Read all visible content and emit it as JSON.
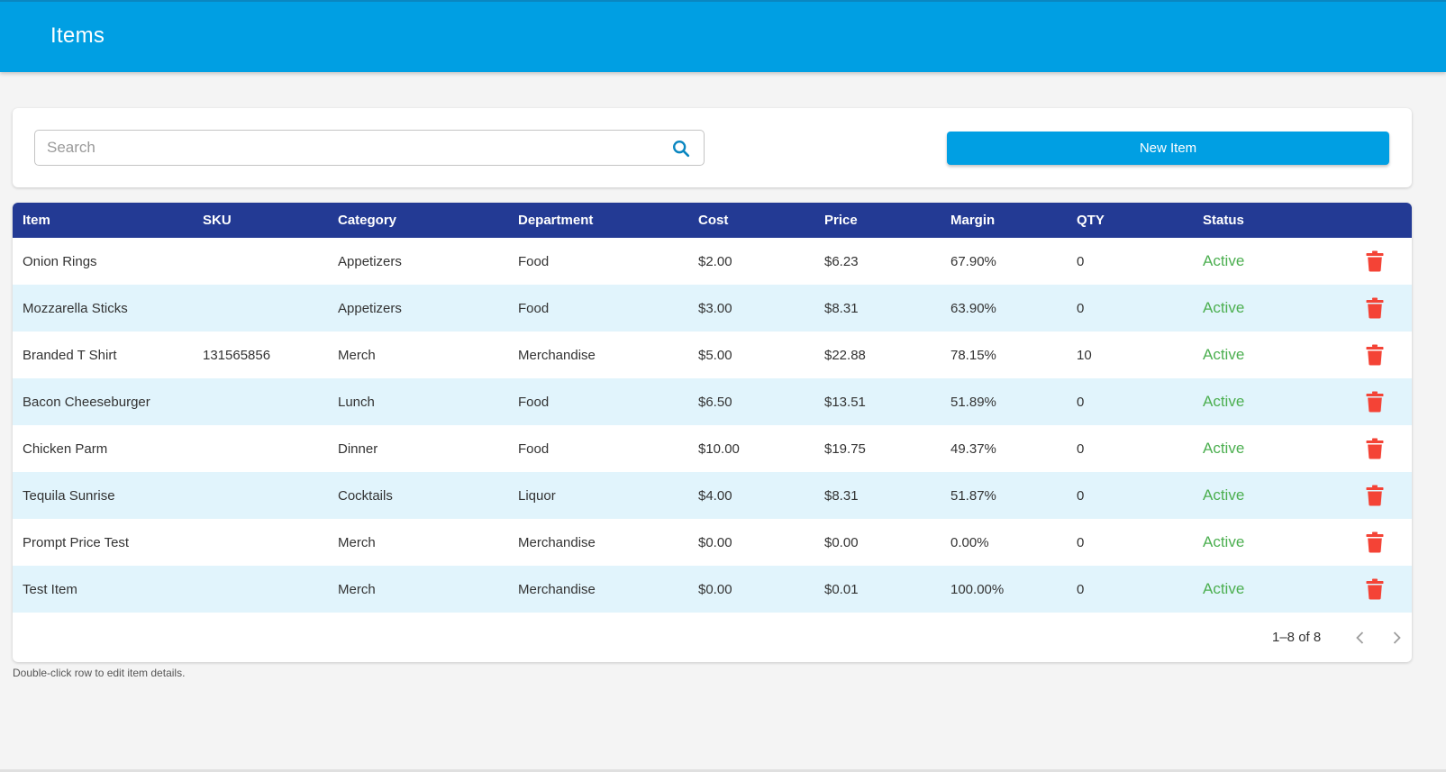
{
  "header": {
    "title": "Items"
  },
  "search": {
    "placeholder": "Search",
    "value": "",
    "icon": "search-icon"
  },
  "toolbar": {
    "new_item_label": "New Item"
  },
  "colors": {
    "brand": "#009fe3",
    "table_header": "#233a94",
    "status_active": "#4caf50",
    "delete": "#f44336",
    "row_alt": "#e1f4fc"
  },
  "table": {
    "columns": [
      "Item",
      "SKU",
      "Category",
      "Department",
      "Cost",
      "Price",
      "Margin",
      "QTY",
      "Status"
    ],
    "rows": [
      {
        "item": "Onion Rings",
        "sku": "",
        "category": "Appetizers",
        "department": "Food",
        "cost": "$2.00",
        "price": "$6.23",
        "margin": "67.90%",
        "qty": "0",
        "status": "Active"
      },
      {
        "item": "Mozzarella Sticks",
        "sku": "",
        "category": "Appetizers",
        "department": "Food",
        "cost": "$3.00",
        "price": "$8.31",
        "margin": "63.90%",
        "qty": "0",
        "status": "Active"
      },
      {
        "item": "Branded T Shirt",
        "sku": "131565856",
        "category": "Merch",
        "department": "Merchandise",
        "cost": "$5.00",
        "price": "$22.88",
        "margin": "78.15%",
        "qty": "10",
        "status": "Active"
      },
      {
        "item": "Bacon Cheeseburger",
        "sku": "",
        "category": "Lunch",
        "department": "Food",
        "cost": "$6.50",
        "price": "$13.51",
        "margin": "51.89%",
        "qty": "0",
        "status": "Active"
      },
      {
        "item": "Chicken Parm",
        "sku": "",
        "category": "Dinner",
        "department": "Food",
        "cost": "$10.00",
        "price": "$19.75",
        "margin": "49.37%",
        "qty": "0",
        "status": "Active"
      },
      {
        "item": "Tequila Sunrise",
        "sku": "",
        "category": "Cocktails",
        "department": "Liquor",
        "cost": "$4.00",
        "price": "$8.31",
        "margin": "51.87%",
        "qty": "0",
        "status": "Active"
      },
      {
        "item": "Prompt Price Test",
        "sku": "",
        "category": "Merch",
        "department": "Merchandise",
        "cost": "$0.00",
        "price": "$0.00",
        "margin": "0.00%",
        "qty": "0",
        "status": "Active"
      },
      {
        "item": "Test Item",
        "sku": "",
        "category": "Merch",
        "department": "Merchandise",
        "cost": "$0.00",
        "price": "$0.01",
        "margin": "100.00%",
        "qty": "0",
        "status": "Active"
      }
    ]
  },
  "pagination": {
    "range": "1–8 of 8"
  },
  "footnote": "Double-click row to edit item details."
}
